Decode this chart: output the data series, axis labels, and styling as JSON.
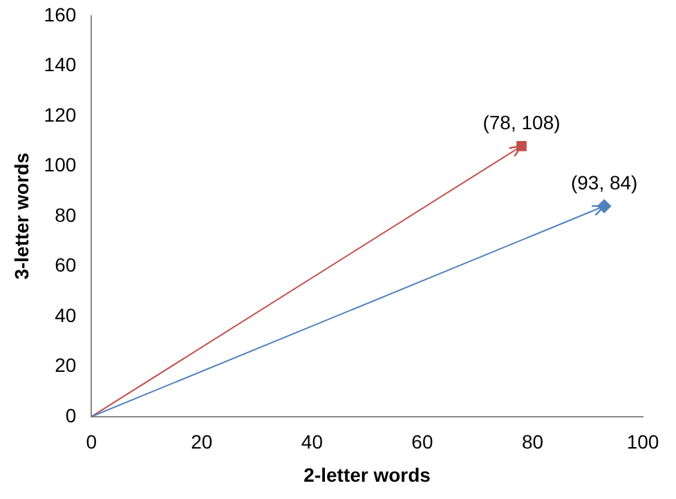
{
  "chart_data": {
    "type": "scatter",
    "xlabel": "2-letter words",
    "ylabel": "3-letter words",
    "series": [
      {
        "type": "line",
        "color": "#4f81bd",
        "x": [
          0,
          93
        ],
        "values": [
          0,
          84
        ],
        "marker": "none"
      },
      {
        "type": "line",
        "color": "#c0504d",
        "x": [
          0,
          78
        ],
        "values": [
          0,
          108
        ],
        "marker": "none"
      },
      {
        "color": "#4f81bd",
        "x": [
          93
        ],
        "values": [
          84
        ],
        "marker": "diamond"
      },
      {
        "color": "#c0504d",
        "x": [
          78
        ],
        "values": [
          108
        ],
        "marker": "square"
      }
    ],
    "annotations": [
      {
        "text": "(93, 84)",
        "x": 93,
        "y": 84
      },
      {
        "text": "(78, 108)",
        "x": 78,
        "y": 108
      }
    ],
    "xlim": [
      0,
      100
    ],
    "xticks": [
      0,
      20,
      40,
      60,
      80,
      100
    ],
    "ylim": [
      0,
      160
    ],
    "yticks": [
      0,
      20,
      40,
      60,
      80,
      100,
      120,
      140,
      160
    ],
    "grid": false,
    "legend": false
  }
}
